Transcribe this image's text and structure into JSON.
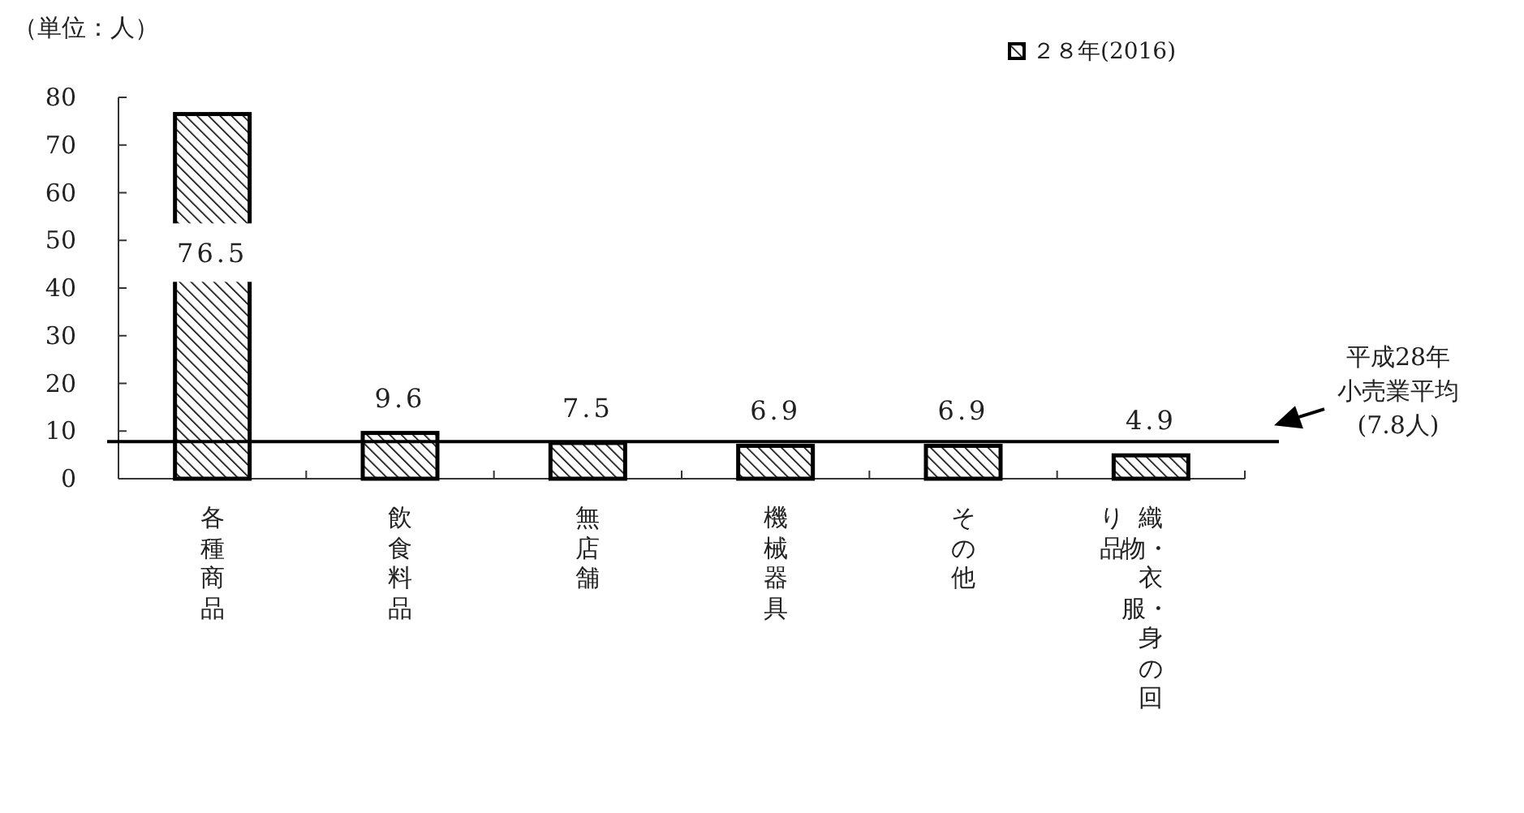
{
  "chart_data": {
    "type": "bar",
    "ylabel": "（単位：人）",
    "categories": [
      "各種商品",
      "飲食料品",
      "無店舗",
      "機械器具",
      "その他",
      "織物・衣服・身の回り品"
    ],
    "series": [
      {
        "name": "２８年(2016)",
        "color": "#000000",
        "values": [
          76.5,
          9.6,
          7.5,
          6.9,
          6.9,
          4.9
        ]
      }
    ],
    "ylim": [
      0,
      80
    ],
    "yticks": [
      0,
      10,
      20,
      30,
      40,
      50,
      60,
      70,
      80
    ],
    "data_labels": true,
    "legend": "top right",
    "grid": false,
    "ref_lines": [
      {
        "axis": "y",
        "value": 7.8,
        "label": "平成28年小売業平均(7.8人)",
        "color": "#000000"
      }
    ]
  }
}
